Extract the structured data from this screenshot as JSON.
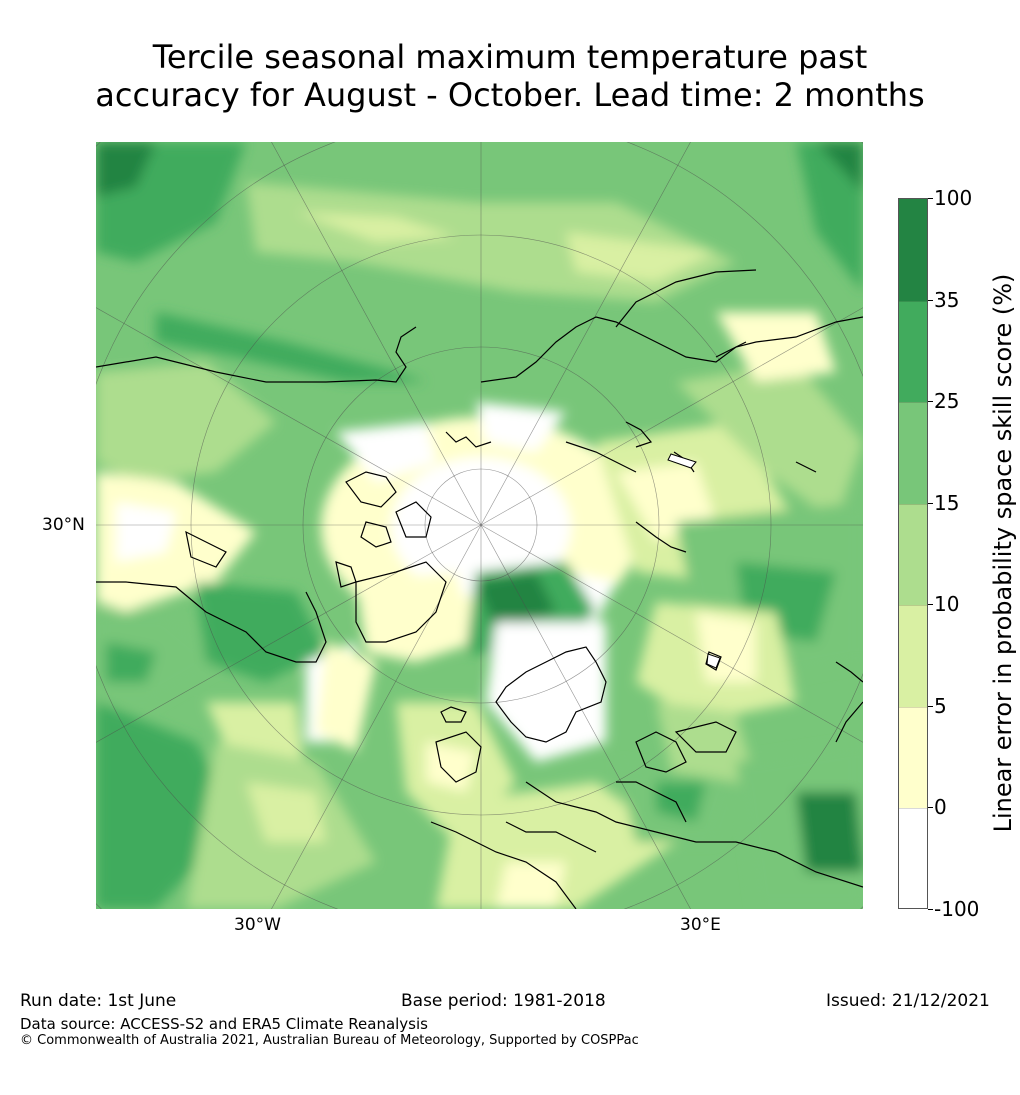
{
  "title": {
    "line1": "Tercile seasonal maximum temperature past",
    "line2": "accuracy for August - October. Lead time: 2 months"
  },
  "map": {
    "projection": "north polar stereographic",
    "graticule_labels": {
      "lat_30n": "30°N",
      "lon_30w": "30°W",
      "lon_30e": "30°E"
    }
  },
  "colorbar": {
    "label": "Linear error in probability space skill score (%)",
    "ticks": [
      "100",
      "35",
      "25",
      "15",
      "10",
      "5",
      "0",
      "-100"
    ],
    "bins": [
      {
        "range": "-100 to 0",
        "color": "#ffffff"
      },
      {
        "range": "0 to 5",
        "color": "#ffffcc"
      },
      {
        "range": "5 to 10",
        "color": "#d9f0a3"
      },
      {
        "range": "10 to 15",
        "color": "#addd8e"
      },
      {
        "range": "15 to 25",
        "color": "#78c679"
      },
      {
        "range": "25 to 35",
        "color": "#41ab5d"
      },
      {
        "range": "35 to 100",
        "color": "#238443"
      }
    ]
  },
  "footer": {
    "run_date": "Run date: 1st June",
    "base_period": "Base period: 1981-2018",
    "issued": "Issued: 21/12/2021",
    "data_source": "Data source: ACCESS-S2 and ERA5 Climate Reanalysis",
    "copyright": "© Commonwealth of Australia 2021, Australian Bureau of Meteorology, Supported by COSPPac"
  }
}
